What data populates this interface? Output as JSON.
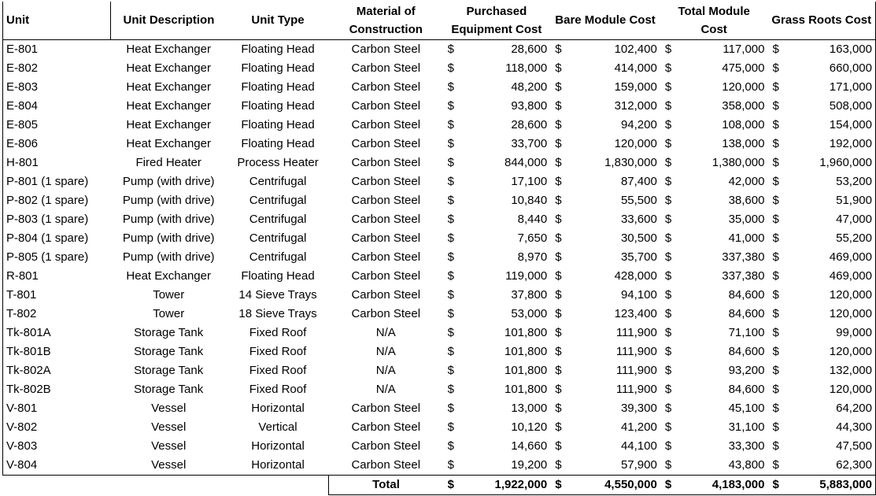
{
  "headers": {
    "unit": "Unit",
    "description": "Unit Description",
    "type": "Unit Type",
    "material": "Material of Construction",
    "purchased": "Purchased Equipment Cost",
    "bare": "Bare Module Cost",
    "total_module": "Total Module Cost",
    "grass": "Grass Roots Cost"
  },
  "currency": "$",
  "rows": [
    {
      "unit": "E-801",
      "desc": "Heat Exchanger",
      "type": "Floating Head",
      "mat": "Carbon Steel",
      "pec": "28,600",
      "bmc": "102,400",
      "tmc": "117,000",
      "grc": "163,000"
    },
    {
      "unit": "E-802",
      "desc": "Heat Exchanger",
      "type": "Floating Head",
      "mat": "Carbon Steel",
      "pec": "118,000",
      "bmc": "414,000",
      "tmc": "475,000",
      "grc": "660,000"
    },
    {
      "unit": "E-803",
      "desc": "Heat Exchanger",
      "type": "Floating Head",
      "mat": "Carbon Steel",
      "pec": "48,200",
      "bmc": "159,000",
      "tmc": "120,000",
      "grc": "171,000"
    },
    {
      "unit": "E-804",
      "desc": "Heat Exchanger",
      "type": "Floating Head",
      "mat": "Carbon Steel",
      "pec": "93,800",
      "bmc": "312,000",
      "tmc": "358,000",
      "grc": "508,000"
    },
    {
      "unit": "E-805",
      "desc": "Heat Exchanger",
      "type": "Floating Head",
      "mat": "Carbon Steel",
      "pec": "28,600",
      "bmc": "94,200",
      "tmc": "108,000",
      "grc": "154,000"
    },
    {
      "unit": "E-806",
      "desc": "Heat Exchanger",
      "type": "Floating Head",
      "mat": "Carbon Steel",
      "pec": "33,700",
      "bmc": "120,000",
      "tmc": "138,000",
      "grc": "192,000"
    },
    {
      "unit": "H-801",
      "desc": "Fired Heater",
      "type": "Process Heater",
      "mat": "Carbon Steel",
      "pec": "844,000",
      "bmc": "1,830,000",
      "tmc": "1,380,000",
      "grc": "1,960,000"
    },
    {
      "unit": "P-801 (1 spare)",
      "desc": "Pump (with drive)",
      "type": "Centrifugal",
      "mat": "Carbon Steel",
      "pec": "17,100",
      "bmc": "87,400",
      "tmc": "42,000",
      "grc": "53,200"
    },
    {
      "unit": "P-802 (1 spare)",
      "desc": "Pump (with drive)",
      "type": "Centrifugal",
      "mat": "Carbon Steel",
      "pec": "10,840",
      "bmc": "55,500",
      "tmc": "38,600",
      "grc": "51,900"
    },
    {
      "unit": "P-803 (1 spare)",
      "desc": "Pump (with drive)",
      "type": "Centrifugal",
      "mat": "Carbon Steel",
      "pec": "8,440",
      "bmc": "33,600",
      "tmc": "35,000",
      "grc": "47,000"
    },
    {
      "unit": "P-804 (1 spare)",
      "desc": "Pump (with drive)",
      "type": "Centrifugal",
      "mat": "Carbon Steel",
      "pec": "7,650",
      "bmc": "30,500",
      "tmc": "41,000",
      "grc": "55,200"
    },
    {
      "unit": "P-805 (1 spare)",
      "desc": "Pump (with drive)",
      "type": "Centrifugal",
      "mat": "Carbon Steel",
      "pec": "8,970",
      "bmc": "35,700",
      "tmc": "337,380",
      "grc": "469,000"
    },
    {
      "unit": "R-801",
      "desc": "Heat Exchanger",
      "type": "Floating Head",
      "mat": "Carbon Steel",
      "pec": "119,000",
      "bmc": "428,000",
      "tmc": "337,380",
      "grc": "469,000"
    },
    {
      "unit": "T-801",
      "desc": "Tower",
      "type": "14 Sieve Trays",
      "mat": "Carbon Steel",
      "pec": "37,800",
      "bmc": "94,100",
      "tmc": "84,600",
      "grc": "120,000"
    },
    {
      "unit": "T-802",
      "desc": "Tower",
      "type": "18 Sieve Trays",
      "mat": "Carbon Steel",
      "pec": "53,000",
      "bmc": "123,400",
      "tmc": "84,600",
      "grc": "120,000"
    },
    {
      "unit": "Tk-801A",
      "desc": "Storage Tank",
      "type": "Fixed Roof",
      "mat": "N/A",
      "pec": "101,800",
      "bmc": "111,900",
      "tmc": "71,100",
      "grc": "99,000"
    },
    {
      "unit": "Tk-801B",
      "desc": "Storage Tank",
      "type": "Fixed Roof",
      "mat": "N/A",
      "pec": "101,800",
      "bmc": "111,900",
      "tmc": "84,600",
      "grc": "120,000"
    },
    {
      "unit": "Tk-802A",
      "desc": "Storage Tank",
      "type": "Fixed Roof",
      "mat": "N/A",
      "pec": "101,800",
      "bmc": "111,900",
      "tmc": "93,200",
      "grc": "132,000"
    },
    {
      "unit": "Tk-802B",
      "desc": "Storage Tank",
      "type": "Fixed Roof",
      "mat": "N/A",
      "pec": "101,800",
      "bmc": "111,900",
      "tmc": "84,600",
      "grc": "120,000"
    },
    {
      "unit": "V-801",
      "desc": "Vessel",
      "type": "Horizontal",
      "mat": "Carbon Steel",
      "pec": "13,000",
      "bmc": "39,300",
      "tmc": "45,100",
      "grc": "64,200"
    },
    {
      "unit": "V-802",
      "desc": "Vessel",
      "type": "Vertical",
      "mat": "Carbon Steel",
      "pec": "10,120",
      "bmc": "41,200",
      "tmc": "31,100",
      "grc": "44,300"
    },
    {
      "unit": "V-803",
      "desc": "Vessel",
      "type": "Horizontal",
      "mat": "Carbon Steel",
      "pec": "14,660",
      "bmc": "44,100",
      "tmc": "33,300",
      "grc": "47,500"
    },
    {
      "unit": "V-804",
      "desc": "Vessel",
      "type": "Horizontal",
      "mat": "Carbon Steel",
      "pec": "19,200",
      "bmc": "57,900",
      "tmc": "43,800",
      "grc": "62,300"
    }
  ],
  "total": {
    "label": "Total",
    "pec": "1,922,000",
    "bmc": "4,550,000",
    "tmc": "4,183,000",
    "grc": "5,883,000"
  }
}
